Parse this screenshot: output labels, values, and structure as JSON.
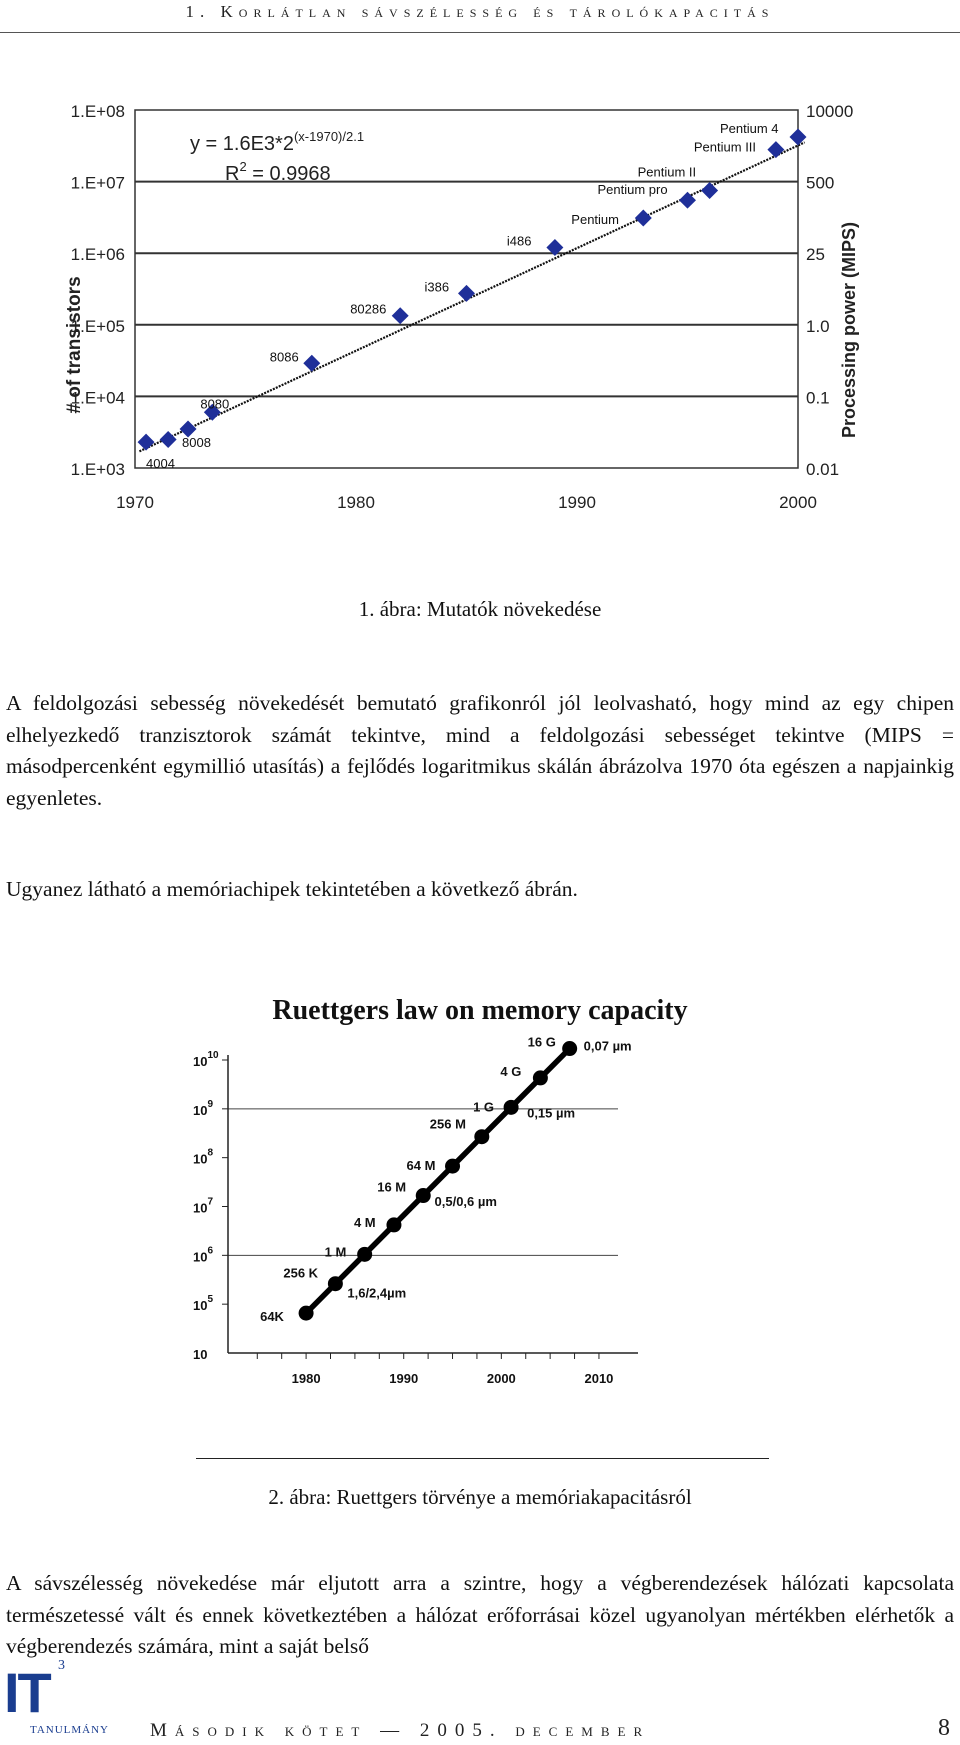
{
  "header": {
    "text": "1. Korlátlan sávszélesség és tárolókapacitás"
  },
  "chart_data": [
    {
      "type": "scatter",
      "title": "",
      "equation_text": "y = 1.6E3*2",
      "equation_exponent": "(x-1970)/2.1",
      "r2_label": "R",
      "r2_exponent": "2",
      "r2_value": " = 0.9968",
      "xlabel": "",
      "ylabel": "# of transistors",
      "ylabel_right": "Processing power (MIPS)",
      "y_scale": "log",
      "xlim": [
        1970,
        2000
      ],
      "ylim": [
        1000,
        100000000
      ],
      "x_ticks": [
        "1970",
        "1980",
        "1990",
        "2000"
      ],
      "y_ticks": [
        "1.E+03",
        "1.E+04",
        "1.E+05",
        "1.E+06",
        "1.E+07",
        "1.E+08"
      ],
      "y_right_ticks": [
        "0.01",
        "0.1",
        "1.0",
        "25",
        "500",
        "10000"
      ],
      "grid": true,
      "marker_color": "#1f2f99",
      "points": [
        {
          "label": "4004",
          "x": 1970.5,
          "y": 2300
        },
        {
          "label": "",
          "x": 1971.5,
          "y": 2500
        },
        {
          "label": "8008",
          "x": 1972.4,
          "y": 3500
        },
        {
          "label": "8080",
          "x": 1973.5,
          "y": 6000
        },
        {
          "label": "8086",
          "x": 1978,
          "y": 29000
        },
        {
          "label": "80286",
          "x": 1982,
          "y": 134000
        },
        {
          "label": "i386",
          "x": 1985,
          "y": 275000
        },
        {
          "label": "i486",
          "x": 1989,
          "y": 1200000
        },
        {
          "label": "Pentium",
          "x": 1993,
          "y": 3100000
        },
        {
          "label": "Pentium pro",
          "x": 1995,
          "y": 5500000
        },
        {
          "label": "Pentium II",
          "x": 1996,
          "y": 7500000
        },
        {
          "label": "Pentium III",
          "x": 1999,
          "y": 28000000
        },
        {
          "label": "Pentium 4",
          "x": 2000,
          "y": 42000000
        }
      ]
    },
    {
      "type": "line",
      "title": "Ruettgers law on memory capacity",
      "xlabel": "",
      "ylabel": "",
      "y_scale": "log",
      "xlim": [
        1972,
        2014
      ],
      "ylim": [
        10000.0,
        10000000000.0
      ],
      "x_ticks": [
        "1980",
        "1990",
        "2000",
        "2010"
      ],
      "y_ticks": [
        {
          "base": "10",
          "exp": ""
        },
        {
          "base": "10",
          "exp": "5"
        },
        {
          "base": "10",
          "exp": "6"
        },
        {
          "base": "10",
          "exp": "7"
        },
        {
          "base": "10",
          "exp": "8"
        },
        {
          "base": "10",
          "exp": "9"
        },
        {
          "base": "10",
          "exp": "10"
        }
      ],
      "points": [
        {
          "label": "64K",
          "x": 1980,
          "y": 65536
        },
        {
          "label": "256 K",
          "x": 1983,
          "y": 262144
        },
        {
          "label": "1 M",
          "x": 1986,
          "y": 1048576
        },
        {
          "label": "4 M",
          "x": 1989,
          "y": 4194304
        },
        {
          "label": "16 M",
          "x": 1992,
          "y": 16777216
        },
        {
          "label": "64 M",
          "x": 1995,
          "y": 67108864
        },
        {
          "label": "256 M",
          "x": 1998,
          "y": 268435456
        },
        {
          "label": "1 G",
          "x": 2001,
          "y": 1073741824
        },
        {
          "label": "4 G",
          "x": 2004,
          "y": 4294967296
        },
        {
          "label": "16 G",
          "x": 2007,
          "y": 17179869184
        }
      ],
      "annotations": [
        "1,6/2,4µm",
        "0,5/0,6 µm",
        "0,15 µm",
        "0,07 µm"
      ]
    }
  ],
  "figure1": {
    "caption": "1. ábra: Mutatók növekedése"
  },
  "paragraph1": "A feldolgozási sebesség növekedését bemutató grafikonról jól leolvasható, hogy mind az egy chipen elhelyezkedő tranzisztorok számát tekintve, mind a feldolgozási sebességet tekintve (MIPS = másodpercenként egymillió utasítás) a fejlődés logaritmikus skálán ábrázolva 1970 óta egészen a napjainkig egyenletes.",
  "paragraph2": "Ugyanez látható a memóriachipek tekintetében a következő ábrán.",
  "figure2": {
    "caption": "2. ábra: Ruettgers törvénye a memóriakapacitásról"
  },
  "paragraph3": "A sávszélesség növekedése már eljutott arra a szintre, hogy a végberendezések hálózati kapcsolata természetessé vált és ennek következtében a hálózat erőforrásai közel ugyanolyan mértékben elérhetők a végberendezés számára, mint a saját belső",
  "footer": {
    "logo_main": "IT",
    "logo_sup": "3",
    "logo_sub": "TANULMÁNY",
    "text": "Második kötet — 2005. december",
    "page": "8"
  }
}
